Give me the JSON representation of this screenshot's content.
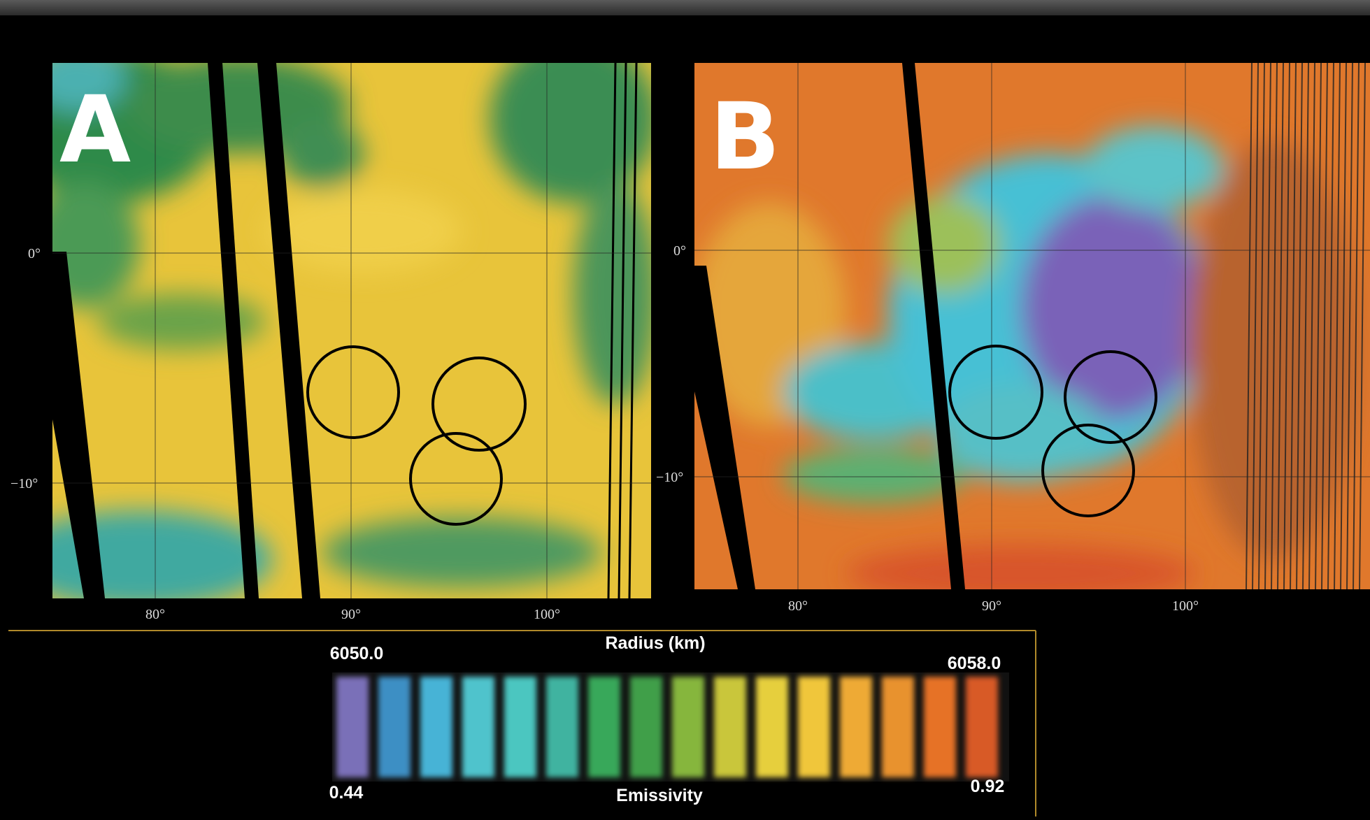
{
  "panels": [
    {
      "label": "A",
      "y_labels": [
        "0°",
        "−10°"
      ],
      "x_labels": [
        "80°",
        "90°",
        "100°"
      ]
    },
    {
      "label": "B",
      "y_labels": [
        "0°",
        "−10°"
      ],
      "x_labels": [
        "80°",
        "90°",
        "100°"
      ]
    }
  ],
  "colorbar": {
    "top_title": "Radius (km)",
    "top_min": "6050.0",
    "top_max": "6058.0",
    "bottom_min": "0.44",
    "bottom_max": "0.92",
    "bottom_title": "Emissivity"
  }
}
